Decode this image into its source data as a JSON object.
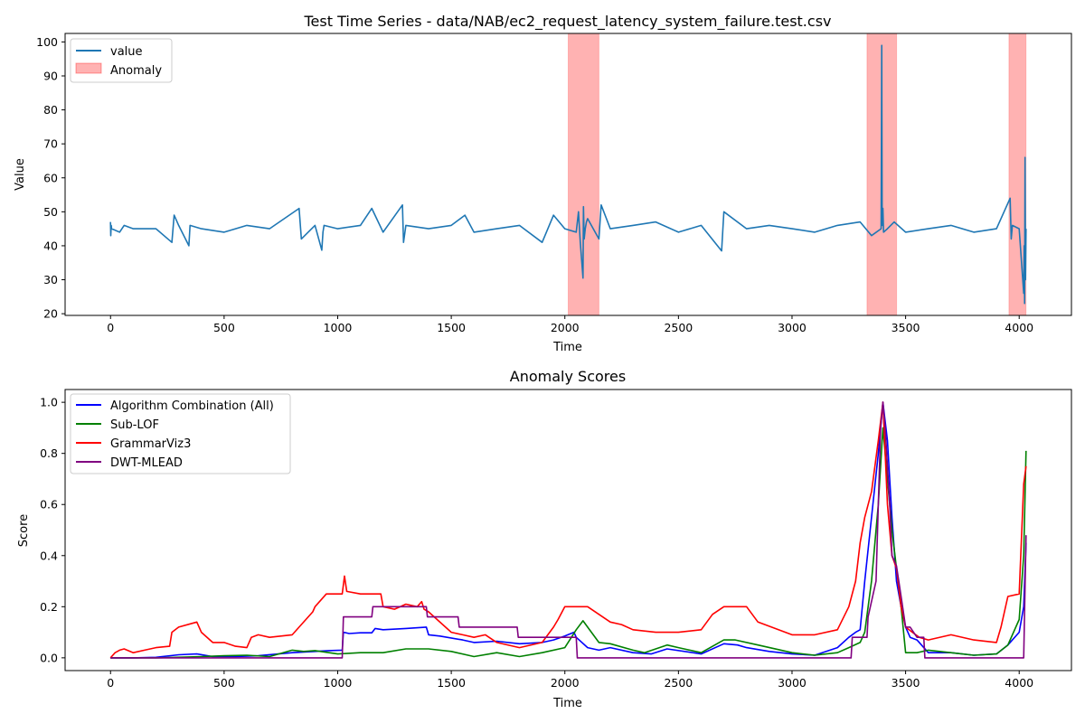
{
  "chart_data": [
    {
      "type": "line",
      "title": "Test Time Series - data/NAB/ec2_request_latency_system_failure.test.csv",
      "xlabel": "Time",
      "ylabel": "Value",
      "xlim": [
        -200,
        4230
      ],
      "ylim": [
        19.5,
        102.5
      ],
      "xticks": [
        0,
        500,
        1000,
        1500,
        2000,
        2500,
        3000,
        3500,
        4000
      ],
      "yticks": [
        20,
        30,
        40,
        50,
        60,
        70,
        80,
        90,
        100
      ],
      "legend": {
        "position": "top-left",
        "entries": [
          "value",
          "Anomaly"
        ]
      },
      "series": [
        {
          "name": "value",
          "color": "#1f77b4",
          "x": [
            0,
            1,
            3,
            5,
            40,
            60,
            100,
            200,
            270,
            280,
            300,
            345,
            350,
            400,
            500,
            600,
            700,
            830,
            840,
            900,
            930,
            935,
            940,
            1000,
            1100,
            1150,
            1200,
            1285,
            1290,
            1300,
            1400,
            1500,
            1560,
            1600,
            1700,
            1800,
            1900,
            1950,
            2000,
            2050,
            2060,
            2068,
            2080,
            2082,
            2085,
            2090,
            2095,
            2100,
            2150,
            2160,
            2200,
            2300,
            2400,
            2500,
            2600,
            2690,
            2700,
            2800,
            2900,
            3000,
            3100,
            3200,
            3300,
            3350,
            3392,
            3395,
            3397,
            3400,
            3403,
            3420,
            3450,
            3500,
            3600,
            3700,
            3800,
            3900,
            3960,
            3965,
            3970,
            4000,
            4020,
            4022,
            4024,
            4026,
            4028,
            4030
          ],
          "y": [
            47,
            43,
            46,
            45,
            44,
            46,
            45,
            45,
            41,
            49,
            46,
            40,
            46,
            45,
            44,
            46,
            45,
            51,
            42,
            46,
            38.7,
            44,
            46,
            45,
            46,
            51,
            44,
            52,
            41,
            46,
            45,
            46,
            49,
            44,
            45,
            46,
            41,
            49,
            45,
            44,
            50,
            41,
            30.5,
            51.5,
            42,
            45,
            47,
            48,
            42,
            52,
            45,
            46,
            47,
            44,
            46,
            38.5,
            50,
            45,
            46,
            45,
            44,
            46,
            47,
            43,
            45,
            99,
            46,
            51,
            44,
            45,
            47,
            44,
            45,
            46,
            44,
            45,
            54,
            42,
            46,
            45,
            26,
            40,
            23,
            66,
            30,
            45
          ]
        }
      ],
      "anomaly_ranges": [
        [
          2015,
          2150
        ],
        [
          3330,
          3460
        ],
        [
          3955,
          4030
        ]
      ],
      "colors": {
        "value": "#1f77b4",
        "anomaly": "#ff0000"
      }
    },
    {
      "type": "line",
      "title": "Anomaly Scores",
      "xlabel": "Time",
      "ylabel": "Score",
      "xlim": [
        -200,
        4230
      ],
      "ylim": [
        -0.05,
        1.05
      ],
      "xticks": [
        0,
        500,
        1000,
        1500,
        2000,
        2500,
        3000,
        3500,
        4000
      ],
      "yticks": [
        0.0,
        0.2,
        0.4,
        0.6,
        0.8,
        1.0
      ],
      "legend": {
        "position": "top-left",
        "entries": [
          "Algorithm Combination (All)",
          "Sub-LOF",
          "GrammarViz3",
          "DWT-MLEAD"
        ]
      },
      "series": [
        {
          "name": "Algorithm Combination (All)",
          "color": "#0000ff",
          "x": [
            0,
            100,
            200,
            300,
            380,
            450,
            550,
            650,
            800,
            900,
            960,
            1020,
            1025,
            1050,
            1100,
            1150,
            1165,
            1200,
            1300,
            1390,
            1400,
            1450,
            1550,
            1600,
            1700,
            1800,
            1900,
            1950,
            2000,
            2040,
            2050,
            2100,
            2150,
            2200,
            2300,
            2380,
            2450,
            2600,
            2700,
            2760,
            2800,
            2900,
            3000,
            3100,
            3200,
            3250,
            3280,
            3300,
            3320,
            3350,
            3380,
            3400,
            3420,
            3440,
            3460,
            3480,
            3500,
            3520,
            3550,
            3600,
            3700,
            3800,
            3900,
            3950,
            4000,
            4020,
            4030
          ],
          "y": [
            0,
            0,
            0.002,
            0.012,
            0.015,
            0.005,
            0.005,
            0.008,
            0.02,
            0.025,
            0.028,
            0.03,
            0.1,
            0.095,
            0.098,
            0.098,
            0.115,
            0.11,
            0.115,
            0.12,
            0.09,
            0.085,
            0.07,
            0.06,
            0.065,
            0.055,
            0.06,
            0.07,
            0.085,
            0.1,
            0.08,
            0.04,
            0.03,
            0.04,
            0.02,
            0.015,
            0.035,
            0.015,
            0.055,
            0.05,
            0.04,
            0.025,
            0.015,
            0.01,
            0.04,
            0.08,
            0.1,
            0.11,
            0.3,
            0.55,
            0.8,
            1.0,
            0.85,
            0.55,
            0.3,
            0.2,
            0.12,
            0.08,
            0.07,
            0.02,
            0.02,
            0.01,
            0.015,
            0.05,
            0.1,
            0.2,
            0.45
          ]
        },
        {
          "name": "Sub-LOF",
          "color": "#008000",
          "x": [
            0,
            200,
            400,
            500,
            600,
            700,
            800,
            850,
            900,
            1000,
            1100,
            1200,
            1300,
            1400,
            1500,
            1600,
            1700,
            1800,
            1900,
            2000,
            2050,
            2080,
            2100,
            2150,
            2200,
            2300,
            2350,
            2450,
            2500,
            2600,
            2700,
            2750,
            2850,
            3000,
            3100,
            3200,
            3250,
            3300,
            3320,
            3350,
            3380,
            3400,
            3420,
            3440,
            3460,
            3480,
            3500,
            3550,
            3600,
            3700,
            3800,
            3900,
            3950,
            4000,
            4020,
            4030
          ],
          "y": [
            0,
            0,
            0.005,
            0.008,
            0.01,
            0.005,
            0.03,
            0.025,
            0.028,
            0.015,
            0.02,
            0.02,
            0.035,
            0.035,
            0.025,
            0.005,
            0.02,
            0.005,
            0.02,
            0.04,
            0.11,
            0.145,
            0.12,
            0.06,
            0.055,
            0.03,
            0.02,
            0.05,
            0.04,
            0.02,
            0.07,
            0.07,
            0.05,
            0.02,
            0.01,
            0.02,
            0.04,
            0.06,
            0.1,
            0.3,
            0.6,
            0.9,
            0.7,
            0.5,
            0.35,
            0.2,
            0.02,
            0.02,
            0.03,
            0.02,
            0.01,
            0.015,
            0.05,
            0.15,
            0.4,
            0.81
          ]
        },
        {
          "name": "GrammarViz3",
          "color": "#ff0000",
          "x": [
            0,
            20,
            40,
            60,
            100,
            150,
            200,
            260,
            270,
            300,
            360,
            380,
            400,
            450,
            500,
            550,
            600,
            620,
            650,
            700,
            800,
            860,
            890,
            900,
            950,
            1000,
            1020,
            1030,
            1040,
            1100,
            1190,
            1200,
            1250,
            1300,
            1350,
            1370,
            1380,
            1400,
            1500,
            1550,
            1600,
            1650,
            1700,
            1800,
            1900,
            1950,
            1970,
            2000,
            2050,
            2100,
            2200,
            2250,
            2300,
            2400,
            2500,
            2600,
            2650,
            2700,
            2800,
            2850,
            3000,
            3100,
            3200,
            3250,
            3280,
            3300,
            3320,
            3350,
            3380,
            3400,
            3420,
            3440,
            3460,
            3480,
            3500,
            3530,
            3560,
            3600,
            3700,
            3800,
            3900,
            3920,
            3950,
            4000,
            4020,
            4030
          ],
          "y": [
            0,
            0.02,
            0.03,
            0.035,
            0.02,
            0.03,
            0.04,
            0.045,
            0.1,
            0.12,
            0.135,
            0.14,
            0.1,
            0.06,
            0.06,
            0.045,
            0.04,
            0.08,
            0.09,
            0.08,
            0.09,
            0.15,
            0.18,
            0.2,
            0.25,
            0.25,
            0.25,
            0.32,
            0.26,
            0.25,
            0.25,
            0.2,
            0.19,
            0.21,
            0.2,
            0.22,
            0.19,
            0.18,
            0.1,
            0.09,
            0.08,
            0.09,
            0.06,
            0.04,
            0.06,
            0.12,
            0.15,
            0.2,
            0.2,
            0.2,
            0.14,
            0.13,
            0.11,
            0.1,
            0.1,
            0.11,
            0.17,
            0.2,
            0.2,
            0.14,
            0.09,
            0.09,
            0.11,
            0.2,
            0.3,
            0.45,
            0.55,
            0.65,
            0.85,
            1.0,
            0.6,
            0.4,
            0.35,
            0.2,
            0.12,
            0.1,
            0.08,
            0.07,
            0.09,
            0.07,
            0.06,
            0.12,
            0.24,
            0.25,
            0.68,
            0.75
          ]
        },
        {
          "name": "DWT-MLEAD",
          "color": "#800080",
          "x": [
            0,
            1020,
            1025,
            1150,
            1155,
            1390,
            1395,
            1530,
            1535,
            1790,
            1795,
            2050,
            2055,
            3260,
            3265,
            3330,
            3335,
            3370,
            3380,
            3390,
            3400,
            3410,
            3420,
            3430,
            3440,
            3460,
            3480,
            3500,
            3520,
            3550,
            3580,
            3585,
            4000,
            4020,
            4030
          ],
          "y": [
            0,
            0,
            0.16,
            0.16,
            0.2,
            0.2,
            0.16,
            0.16,
            0.12,
            0.12,
            0.08,
            0.08,
            0,
            0,
            0.08,
            0.08,
            0.16,
            0.3,
            0.6,
            0.9,
            1.0,
            0.9,
            0.75,
            0.6,
            0.4,
            0.36,
            0.24,
            0.12,
            0.12,
            0.08,
            0.08,
            0,
            0,
            0.0,
            0.48
          ]
        }
      ],
      "colors": {
        "algorithm_combination": "#0000ff",
        "sub_lof": "#008000",
        "grammarviz3": "#ff0000",
        "dwt_mlead": "#800080"
      }
    }
  ]
}
